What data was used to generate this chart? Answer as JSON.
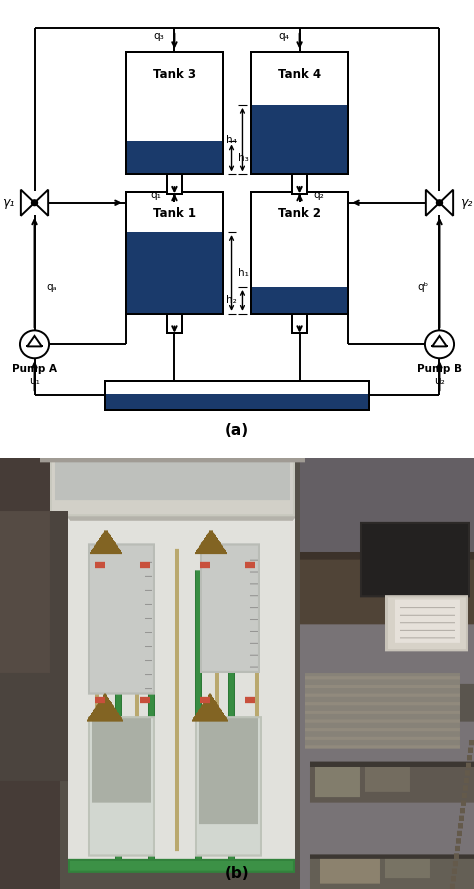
{
  "title_a": "(a)",
  "title_b": "(b)",
  "tank_color": "#1a3a6b",
  "line_color": "#000000",
  "tank3_label": "Tank 3",
  "tank4_label": "Tank 4",
  "tank1_label": "Tank 1",
  "tank2_label": "Tank 2",
  "pump_a_label": "Pump A",
  "pump_b_label": "Pump B",
  "u1_label": "u₁",
  "u2_label": "u₂",
  "gamma1_label": "γ₁",
  "gamma2_label": "γ₂",
  "q1_label": "q₁",
  "q2_label": "q₂",
  "q3_label": "q₃",
  "q4_label": "q₄",
  "qa_label": "qₐ",
  "qb_label": "qᵇ",
  "h1_label": "h₁",
  "h2_label": "h₂",
  "h3_label": "h₃",
  "h4_label": "h₄",
  "photo_bg_left": "#7a7060",
  "photo_bg_right": "#6a6570",
  "photo_board": "#e8e8e0",
  "photo_pipe_green": "#2a6a30",
  "photo_pipe_tan": "#c8b870",
  "photo_tank_body": "#d8d5c8",
  "photo_valve_brown": "#8B6520",
  "photo_shelf_metal": "#8a8070",
  "photo_desk_brown": "#6b5040",
  "photo_laptop_dark": "#303030",
  "photo_laptop_screen": "#ddd8cc"
}
